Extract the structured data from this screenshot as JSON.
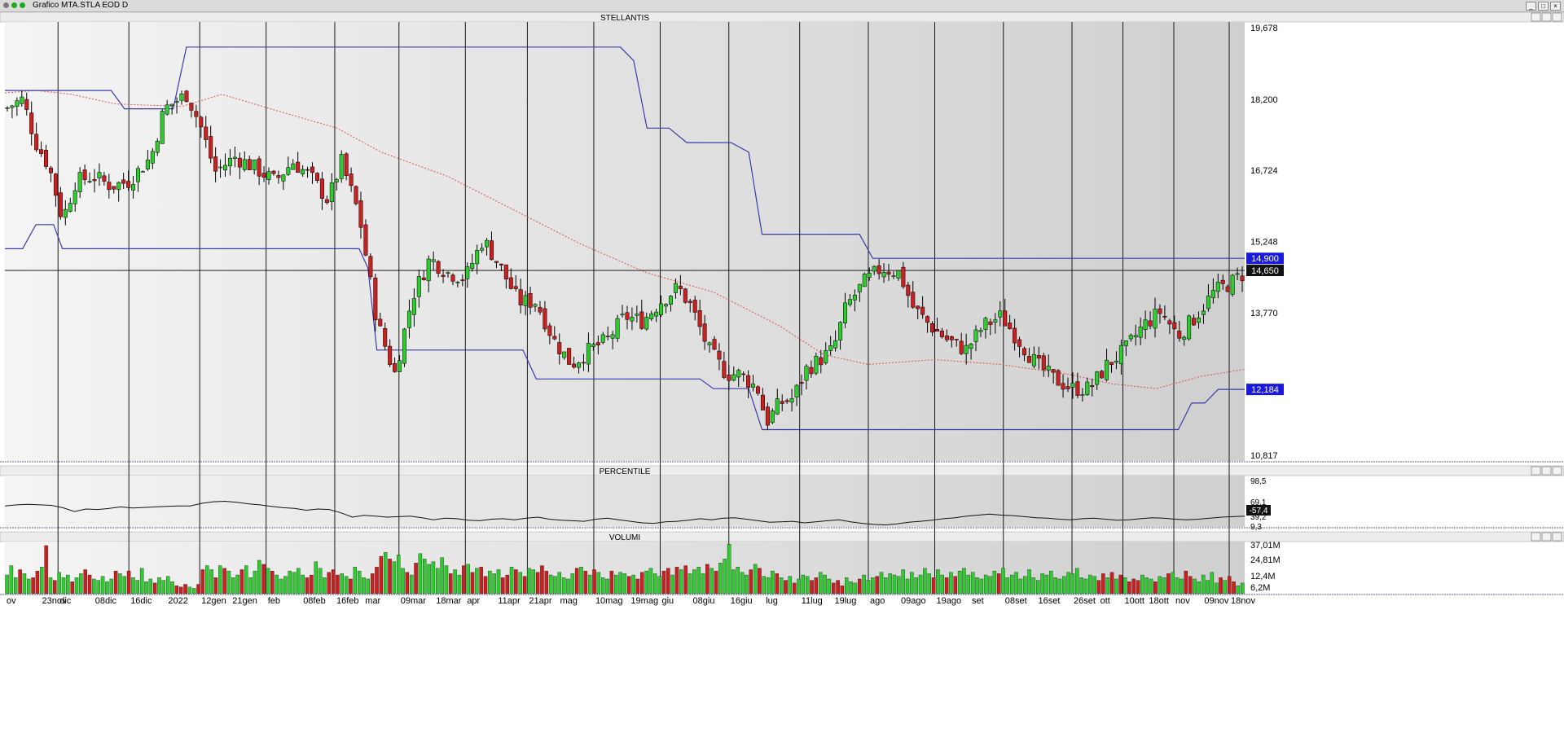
{
  "window": {
    "title": "Grafico MTA.STLA EOD D",
    "controls": [
      "_",
      "□",
      "×"
    ]
  },
  "panels": {
    "price": {
      "title": "STELLANTIS"
    },
    "percentile": {
      "title": "PERCENTILE"
    },
    "volume": {
      "title": "VOLUMI"
    }
  },
  "colors": {
    "up": "#2ecc2e",
    "down": "#cc1f1f",
    "channel": "#3a3aaa",
    "ma": "#e05050",
    "grid": "#000000",
    "bg": "#e0e0e0",
    "tag_blue": "#1a1adc",
    "tag_black": "#111111"
  },
  "chart_data": [
    {
      "type": "candlestick",
      "title": "STELLANTIS",
      "x_labels": [
        "ov",
        "23nov",
        "dic",
        "08dic",
        "16dic",
        "2022",
        "12gen",
        "21gen",
        "feb",
        "08feb",
        "16feb",
        "mar",
        "09mar",
        "18mar",
        "apr",
        "11apr",
        "21apr",
        "mag",
        "10mag",
        "19mag",
        "giu",
        "08giu",
        "16giu",
        "lug",
        "11lug",
        "19lug",
        "ago",
        "09ago",
        "19ago",
        "set",
        "08set",
        "16set",
        "26set",
        "ott",
        "10ott",
        "18ott",
        "nov",
        "09nov",
        "18nov"
      ],
      "y_ticks": [
        19.678,
        18.2,
        16.724,
        15.248,
        13.77,
        10.817
      ],
      "ylim": [
        10.7,
        19.8
      ],
      "tags": [
        {
          "value": 14.9,
          "label": "14,900",
          "color": "blue"
        },
        {
          "value": 14.65,
          "label": "14,650",
          "color": "black"
        },
        {
          "value": 12.184,
          "label": "12,184",
          "color": "blue"
        }
      ],
      "reference_line": 14.65,
      "close_path": [
        [
          0,
          18.0
        ],
        [
          8,
          18.2
        ],
        [
          14,
          17.3
        ],
        [
          20,
          16.8
        ],
        [
          26,
          15.7
        ],
        [
          32,
          16.5
        ],
        [
          40,
          16.6
        ],
        [
          48,
          16.4
        ],
        [
          56,
          16.5
        ],
        [
          66,
          17.0
        ],
        [
          72,
          18.0
        ],
        [
          82,
          18.3
        ],
        [
          88,
          17.7
        ],
        [
          95,
          16.7
        ],
        [
          104,
          17.0
        ],
        [
          112,
          16.8
        ],
        [
          122,
          16.5
        ],
        [
          130,
          16.9
        ],
        [
          138,
          16.6
        ],
        [
          146,
          16.1
        ],
        [
          152,
          16.9
        ],
        [
          160,
          15.8
        ],
        [
          168,
          13.6
        ],
        [
          176,
          12.5
        ],
        [
          184,
          14.1
        ],
        [
          192,
          14.9
        ],
        [
          200,
          14.6
        ],
        [
          208,
          14.5
        ],
        [
          216,
          15.3
        ],
        [
          224,
          14.7
        ],
        [
          232,
          14.0
        ],
        [
          240,
          14.0
        ],
        [
          248,
          13.2
        ],
        [
          256,
          12.7
        ],
        [
          264,
          13.0
        ],
        [
          272,
          13.2
        ],
        [
          280,
          13.7
        ],
        [
          288,
          13.6
        ],
        [
          296,
          14.0
        ],
        [
          304,
          14.3
        ],
        [
          310,
          13.9
        ],
        [
          318,
          13.0
        ],
        [
          326,
          12.5
        ],
        [
          332,
          12.5
        ],
        [
          340,
          12.2
        ],
        [
          344,
          11.5
        ],
        [
          350,
          11.9
        ],
        [
          356,
          12.0
        ],
        [
          362,
          12.6
        ],
        [
          368,
          12.8
        ],
        [
          374,
          13.0
        ],
        [
          380,
          13.9
        ],
        [
          388,
          14.4
        ],
        [
          396,
          14.7
        ],
        [
          404,
          14.6
        ],
        [
          410,
          13.9
        ],
        [
          418,
          13.5
        ],
        [
          426,
          13.2
        ],
        [
          434,
          13.0
        ],
        [
          442,
          13.5
        ],
        [
          450,
          13.7
        ],
        [
          458,
          13.2
        ],
        [
          466,
          12.7
        ],
        [
          474,
          12.4
        ],
        [
          482,
          12.2
        ],
        [
          490,
          12.2
        ],
        [
          498,
          12.7
        ],
        [
          506,
          13.0
        ],
        [
          514,
          13.5
        ],
        [
          522,
          13.8
        ],
        [
          530,
          13.3
        ],
        [
          538,
          13.7
        ],
        [
          546,
          14.2
        ],
        [
          554,
          14.4
        ],
        [
          560,
          14.6
        ]
      ],
      "channel_upper": [
        [
          0,
          18.38
        ],
        [
          48,
          18.38
        ],
        [
          54,
          18.0
        ],
        [
          76,
          18.0
        ],
        [
          82,
          19.28
        ],
        [
          278,
          19.28
        ],
        [
          284,
          19.0
        ],
        [
          290,
          17.6
        ],
        [
          300,
          17.6
        ],
        [
          308,
          17.3
        ],
        [
          328,
          17.3
        ],
        [
          336,
          17.1
        ],
        [
          342,
          15.4
        ],
        [
          386,
          15.4
        ],
        [
          392,
          14.9
        ],
        [
          560,
          14.9
        ]
      ],
      "channel_lower": [
        [
          0,
          15.1
        ],
        [
          8,
          15.1
        ],
        [
          14,
          15.6
        ],
        [
          22,
          15.6
        ],
        [
          26,
          15.1
        ],
        [
          160,
          15.1
        ],
        [
          164,
          14.7
        ],
        [
          168,
          13.0
        ],
        [
          234,
          13.0
        ],
        [
          240,
          12.4
        ],
        [
          314,
          12.4
        ],
        [
          320,
          12.2
        ],
        [
          336,
          12.2
        ],
        [
          342,
          11.35
        ],
        [
          530,
          11.35
        ],
        [
          536,
          11.9
        ],
        [
          542,
          11.9
        ],
        [
          548,
          12.184
        ],
        [
          560,
          12.184
        ]
      ],
      "ma_path": [
        [
          0,
          18.33
        ],
        [
          14,
          18.38
        ],
        [
          30,
          18.3
        ],
        [
          50,
          18.1
        ],
        [
          80,
          18.05
        ],
        [
          98,
          18.3
        ],
        [
          120,
          18.0
        ],
        [
          150,
          17.6
        ],
        [
          170,
          17.1
        ],
        [
          200,
          16.6
        ],
        [
          230,
          15.9
        ],
        [
          260,
          15.2
        ],
        [
          290,
          14.6
        ],
        [
          320,
          14.2
        ],
        [
          350,
          13.5
        ],
        [
          370,
          12.9
        ],
        [
          390,
          12.7
        ],
        [
          420,
          12.8
        ],
        [
          450,
          12.7
        ],
        [
          480,
          12.5
        ],
        [
          500,
          12.3
        ],
        [
          520,
          12.2
        ],
        [
          540,
          12.45
        ],
        [
          560,
          12.6
        ]
      ]
    },
    {
      "type": "line",
      "title": "PERCENTILE",
      "y_ticks": [
        "98,5",
        "69,1",
        "39,2",
        "9,3"
      ],
      "value_tag": "-57,4",
      "values": [
        -18,
        -14,
        -12,
        -14,
        -16,
        -25,
        -40,
        -30,
        -32,
        -28,
        -22,
        -26,
        -24,
        -22,
        -20,
        -18,
        -18,
        -8,
        -2,
        0,
        -4,
        -10,
        -14,
        -20,
        -25,
        -28,
        -35,
        -30,
        -32,
        -45,
        -62,
        -55,
        -58,
        -62,
        -60,
        -58,
        -64,
        -72,
        -66,
        -68,
        -74,
        -76,
        -70,
        -68,
        -72,
        -66,
        -62,
        -70,
        -74,
        -76,
        -78,
        -70,
        -66,
        -72,
        -78,
        -84,
        -86,
        -80,
        -78,
        -74,
        -68,
        -72,
        -66,
        -64,
        -70,
        -76,
        -82,
        -80,
        -78,
        -84,
        -80,
        -76,
        -72,
        -80,
        -86,
        -90,
        -92,
        -88,
        -82,
        -78,
        -74,
        -68,
        -64,
        -58,
        -54,
        -50,
        -54,
        -56,
        -60,
        -64,
        -66,
        -70,
        -72,
        -68,
        -66,
        -70,
        -74,
        -72,
        -68,
        -64,
        -66,
        -70,
        -72,
        -70,
        -66,
        -62,
        -60,
        -58
      ]
    },
    {
      "type": "bar",
      "title": "VOLUMI",
      "y_ticks": [
        "37,01M",
        "24,81M",
        "12,4M",
        "6,2M"
      ],
      "ylim": [
        0,
        39
      ],
      "values_m": [
        14,
        21,
        12,
        18,
        15,
        11,
        12,
        17,
        20,
        36,
        12,
        10,
        16,
        12,
        14,
        9,
        12,
        15,
        18,
        14,
        11,
        10,
        13,
        9,
        11,
        17,
        15,
        13,
        17,
        12,
        10,
        19,
        9,
        11,
        8,
        12,
        10,
        13,
        9,
        6,
        5,
        7,
        5,
        4,
        7,
        18,
        21,
        18,
        12,
        21,
        19,
        17,
        12,
        14,
        18,
        21,
        12,
        17,
        25,
        22,
        19,
        17,
        14,
        11,
        13,
        17,
        16,
        19,
        14,
        12,
        14,
        24,
        19,
        12,
        16,
        18,
        14,
        15,
        13,
        11,
        20,
        17,
        12,
        11,
        15,
        20,
        28,
        31,
        26,
        24,
        29,
        19,
        16,
        14,
        23,
        30,
        26,
        22,
        24,
        19,
        27,
        21,
        15,
        18,
        14,
        21,
        22,
        16,
        19,
        20,
        13,
        17,
        15,
        18,
        12,
        14,
        20,
        18,
        16,
        13,
        19,
        18,
        16,
        21,
        17,
        14,
        13,
        16,
        12,
        11,
        15,
        19,
        20,
        17,
        14,
        18,
        16,
        12,
        11,
        17,
        14,
        16,
        15,
        13,
        14,
        11,
        16,
        17,
        19,
        15,
        13,
        17,
        19,
        14,
        20,
        18,
        21,
        15,
        18,
        20,
        15,
        22,
        19,
        17,
        23,
        26,
        37,
        18,
        20,
        16,
        14,
        18,
        22,
        19,
        13,
        12,
        17,
        15,
        12,
        10,
        13,
        8,
        11,
        14,
        13,
        10,
        12,
        16,
        14,
        11,
        8,
        10,
        6,
        12,
        9,
        8,
        11,
        14,
        10,
        12,
        13,
        16,
        12,
        15,
        14,
        13,
        18,
        11,
        16,
        12,
        14,
        19,
        15,
        12,
        18,
        14,
        12,
        16,
        13,
        17,
        19,
        14,
        16,
        12,
        11,
        14,
        13,
        17,
        15,
        19,
        12,
        14,
        16,
        11,
        13,
        18,
        12,
        10,
        15,
        14,
        17,
        12,
        11,
        13,
        16,
        15,
        19,
        12,
        11,
        14,
        13,
        10,
        15,
        12,
        16,
        11,
        14,
        12,
        9,
        11,
        10,
        14,
        12,
        11,
        9,
        13,
        12,
        15,
        16,
        12,
        11,
        17,
        13,
        11,
        9,
        14,
        10,
        16,
        8,
        12,
        10,
        13,
        9,
        6,
        8
      ]
    }
  ]
}
